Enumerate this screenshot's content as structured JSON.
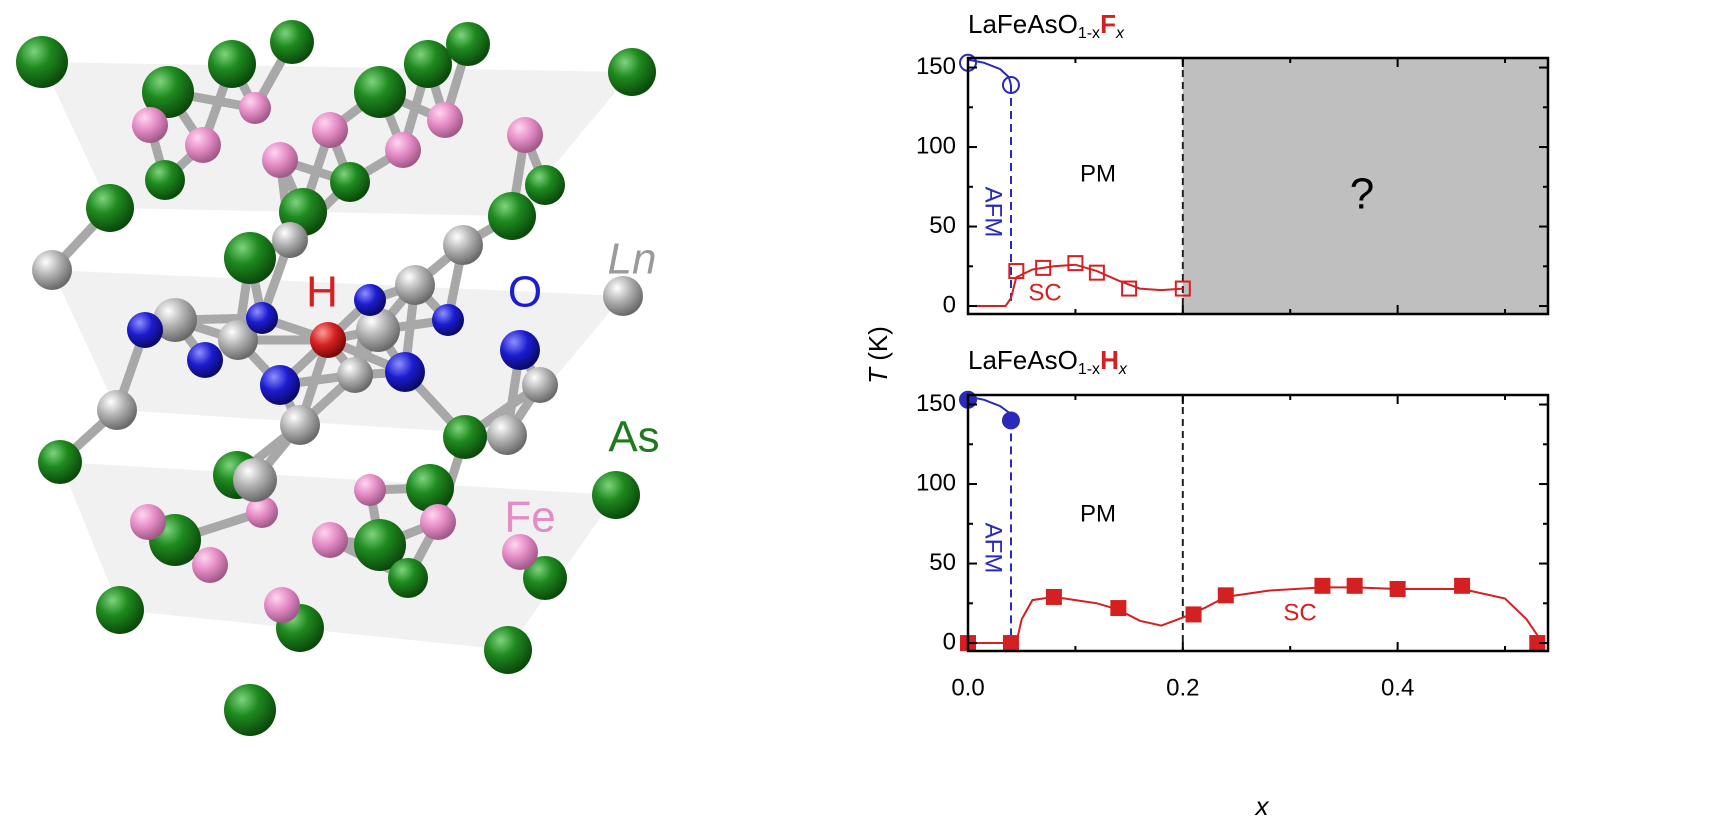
{
  "structure_labels": [
    "Ln",
    "H",
    "O",
    "As",
    "Fe"
  ],
  "shared_axes": {
    "ylabel": [
      "T",
      " (K)"
    ],
    "xlabel": "x"
  },
  "chart_data": [
    {
      "type": "scatter",
      "title": [
        "LaFeAsO",
        "1-x",
        "F",
        "x"
      ],
      "xlim": [
        0,
        0.54
      ],
      "xticks": [
        0,
        0.2,
        0.4
      ],
      "xminorticks": [
        0.1,
        0.3,
        0.5
      ],
      "ylim": [
        -5,
        156
      ],
      "yticks": [
        0,
        50,
        100,
        150
      ],
      "yminorticks": [
        25,
        75,
        125
      ],
      "boundary_x": 0.2,
      "shaded": true,
      "series": [
        {
          "color": "#2a2ab8",
          "filled": false,
          "marker": "circle",
          "x": [
            0,
            0.04
          ],
          "values": [
            153,
            139
          ]
        },
        {
          "color": "#d42020",
          "filled": false,
          "marker": "square",
          "x": [
            0.045,
            0.07,
            0.1,
            0.12,
            0.15,
            0.2
          ],
          "values": [
            22,
            24,
            27,
            21,
            11,
            11
          ]
        }
      ],
      "curves": [
        {
          "color": "#2a2ab8",
          "dashed": false,
          "x": [
            0,
            0.015,
            0.03,
            0.038,
            0.04
          ],
          "values": [
            155,
            153,
            149,
            144,
            139
          ]
        },
        {
          "color": "#2a2ab8",
          "dashed": true,
          "x": [
            0.04,
            0.04
          ],
          "values": [
            139,
            0
          ]
        },
        {
          "color": "#d42020",
          "dashed": false,
          "x": [
            0,
            0.035,
            0.04,
            0.045,
            0.06,
            0.08,
            0.1,
            0.12,
            0.14,
            0.16,
            0.18,
            0.2
          ],
          "values": [
            0,
            0,
            5,
            18,
            23,
            25,
            26,
            22,
            16,
            11,
            10,
            11
          ]
        }
      ],
      "annotations": [
        {
          "text": "AFM",
          "color": "#2a2ab8"
        },
        {
          "text": "PM",
          "color": "#000000"
        },
        {
          "text": "SC",
          "color": "#d42020"
        },
        {
          "text": "?",
          "color": "#000000"
        }
      ]
    },
    {
      "type": "scatter",
      "title": [
        "LaFeAsO",
        "1-x",
        "H",
        "x"
      ],
      "xlim": [
        0,
        0.54
      ],
      "xticks": [
        {
          "value": 0,
          "label": "0.0"
        },
        {
          "value": 0.2,
          "label": "0.2"
        },
        {
          "value": 0.4,
          "label": "0.4"
        }
      ],
      "xminorticks": [
        0.1,
        0.3,
        0.5
      ],
      "ylim": [
        -5,
        156
      ],
      "yticks": [
        0,
        50,
        100,
        150
      ],
      "yminorticks": [
        25,
        75,
        125
      ],
      "boundary_x": 0.2,
      "shaded": false,
      "series": [
        {
          "color": "#2a2ab8",
          "filled": true,
          "marker": "circle",
          "x": [
            0,
            0.04
          ],
          "values": [
            153,
            140
          ]
        },
        {
          "color": "#d42020",
          "filled": true,
          "marker": "square",
          "x": [
            0,
            0.04,
            0.08,
            0.14,
            0.21,
            0.24,
            0.33,
            0.36,
            0.4,
            0.46,
            0.53
          ],
          "values": [
            0,
            0,
            29,
            22,
            18,
            30,
            36,
            36,
            34,
            36,
            0
          ]
        }
      ],
      "curves": [
        {
          "color": "#2a2ab8",
          "dashed": false,
          "x": [
            0,
            0.015,
            0.03,
            0.038,
            0.04
          ],
          "values": [
            155,
            153,
            149,
            145,
            140
          ]
        },
        {
          "color": "#2a2ab8",
          "dashed": true,
          "x": [
            0.04,
            0.04
          ],
          "values": [
            140,
            0
          ]
        },
        {
          "color": "#d42020",
          "dashed": false,
          "x": [
            0,
            0.04
          ],
          "values": [
            0,
            0
          ]
        },
        {
          "color": "#d42020",
          "dashed": false,
          "x": [
            0.045,
            0.05,
            0.06,
            0.08,
            0.1,
            0.12,
            0.14,
            0.16,
            0.18,
            0.2,
            0.22,
            0.24,
            0.28,
            0.33,
            0.36,
            0.4,
            0.46,
            0.5,
            0.52,
            0.535
          ],
          "values": [
            0,
            15,
            27,
            29,
            27,
            25,
            21,
            14,
            11,
            16,
            22,
            29,
            33,
            35,
            35,
            34,
            34,
            28,
            15,
            0
          ]
        }
      ],
      "annotations": [
        {
          "text": "AFM",
          "color": "#2a2ab8"
        },
        {
          "text": "PM",
          "color": "#000000"
        },
        {
          "text": "SC",
          "color": "#d42020"
        }
      ]
    }
  ]
}
